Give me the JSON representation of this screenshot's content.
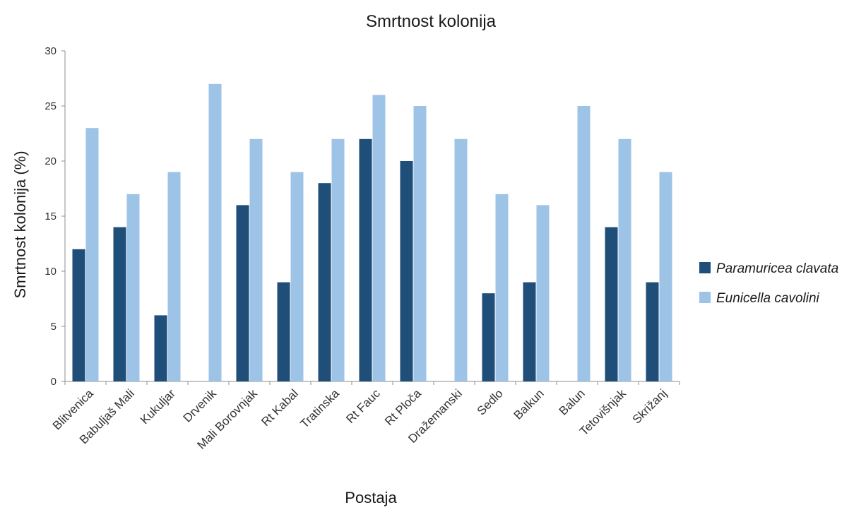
{
  "chart_data": {
    "type": "bar",
    "title": "Smrtnost kolonija",
    "xlabel": "Postaja",
    "ylabel": "Smrtnost kolonija (%)",
    "ylim": [
      0,
      30
    ],
    "yticks": [
      0,
      5,
      10,
      15,
      20,
      25,
      30
    ],
    "grid": false,
    "legend_position": "right",
    "categories": [
      "Blitvenica",
      "Babuljaš Mali",
      "Kukuljar",
      "Drvenik",
      "Mali Borovnjak",
      "Rt Kabal",
      "Tratinska",
      "Rt Fauc",
      "Rt Ploča",
      "Dražemanski",
      "Sedlo",
      "Balkun",
      "Balun",
      "Tetovišnjak",
      "Skrižanj"
    ],
    "series": [
      {
        "name": "Paramuricea clavata",
        "color": "#1f4e79",
        "values": [
          12,
          14,
          6,
          0,
          16,
          9,
          18,
          22,
          20,
          0,
          8,
          9,
          0,
          14,
          9
        ]
      },
      {
        "name": "Eunicella cavolini",
        "color": "#9dc3e6",
        "values": [
          23,
          17,
          19,
          27,
          22,
          19,
          22,
          26,
          25,
          22,
          17,
          16,
          25,
          22,
          19
        ]
      }
    ]
  }
}
